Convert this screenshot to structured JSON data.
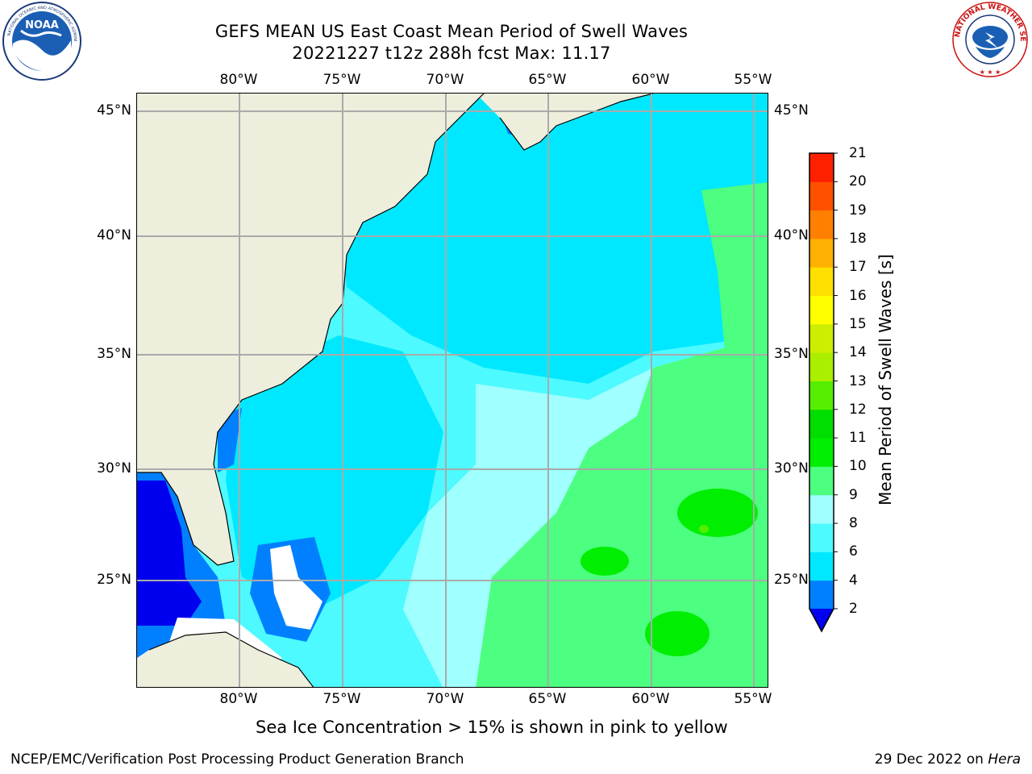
{
  "header": {
    "title_line1": "GEFS MEAN US East Coast Mean Period of Swell Waves",
    "title_line2": "20221227 t12z 288h fcst   Max: 11.17"
  },
  "map": {
    "lon_ticks": [
      "80°W",
      "75°W",
      "70°W",
      "65°W",
      "60°W",
      "55°W"
    ],
    "lat_ticks": [
      "45°N",
      "40°N",
      "35°N",
      "30°N",
      "25°N"
    ],
    "colors": {
      "land": "#eeeedd",
      "gridlines": "#aaaaaa",
      "coast": "#000000"
    }
  },
  "colorbar": {
    "label": "Mean Period of Swell Waves [s]",
    "ticks": [
      "2",
      "4",
      "6",
      "8",
      "9",
      "10",
      "11",
      "12",
      "13",
      "14",
      "15",
      "16",
      "17",
      "18",
      "19",
      "20",
      "21"
    ],
    "colors": [
      "#0080ff",
      "#00e8ff",
      "#4dfaff",
      "#a0ffff",
      "#4dff80",
      "#00ee00",
      "#00dd00",
      "#55ee00",
      "#aaee00",
      "#ccee00",
      "#ffff00",
      "#ffe000",
      "#ffb000",
      "#ff8000",
      "#ff5000",
      "#ff2000"
    ],
    "under_color": "#0000ee"
  },
  "note": "Sea Ice Concentration > 15% is shown in pink to yellow",
  "footer": {
    "credit_left": "NCEP/EMC/Verification Post Processing Product Generation Branch",
    "date_text": "29 Dec 2022 on ",
    "machine": "Hera"
  },
  "logos": {
    "noaa": "noaa-logo",
    "nws": "national-weather-service-logo"
  }
}
